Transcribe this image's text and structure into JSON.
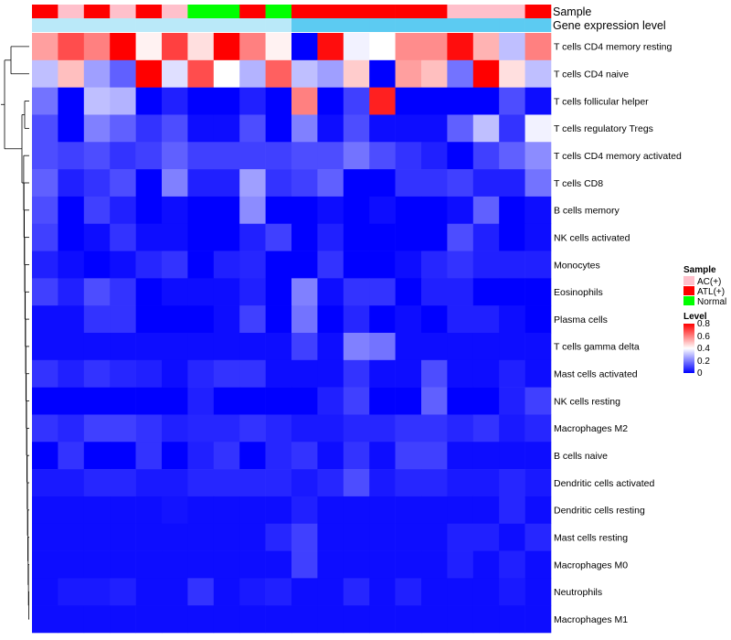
{
  "chart_data": {
    "type": "heatmap",
    "annotation_tracks": [
      {
        "name": "Sample",
        "values": [
          "ATL(+)",
          "AC(+)",
          "ATL(+)",
          "AC(+)",
          "ATL(+)",
          "AC(+)",
          "Normal",
          "Normal",
          "ATL(+)",
          "Normal",
          "ATL(+)",
          "ATL(+)",
          "ATL(+)",
          "ATL(+)",
          "ATL(+)",
          "ATL(+)",
          "AC(+)",
          "AC(+)",
          "AC(+)",
          "ATL(+)"
        ]
      },
      {
        "name": "Gene expression level",
        "values": [
          0.1,
          0.1,
          0.1,
          0.1,
          0.1,
          0.1,
          0.1,
          0.1,
          0.1,
          0.1,
          0.5,
          0.5,
          0.5,
          0.5,
          0.5,
          0.5,
          0.5,
          0.5,
          0.5,
          0.5
        ]
      }
    ],
    "rows": [
      "T cells CD4 memory resting",
      "T cells CD4 naive",
      "T cells follicular helper",
      "T cells regulatory  Tregs",
      "T cells CD4 memory activated",
      "T cells CD8",
      "B cells memory",
      "NK cells activated",
      "Monocytes",
      "Eosinophils",
      "Plasma cells",
      "T cells gamma delta",
      "Mast cells activated",
      "NK cells resting",
      "Macrophages M2",
      "B cells naive",
      "Dendritic cells activated",
      "Dendritic cells resting",
      "Mast cells resting",
      "Macrophages M0",
      "Neutrophils",
      "Macrophages M1"
    ],
    "values": [
      [
        0.55,
        0.68,
        0.6,
        0.8,
        0.42,
        0.7,
        0.45,
        0.8,
        0.6,
        0.42,
        0.0,
        0.78,
        0.38,
        0.4,
        0.58,
        0.58,
        0.78,
        0.52,
        0.3,
        0.6
      ],
      [
        0.3,
        0.5,
        0.25,
        0.15,
        0.8,
        0.35,
        0.68,
        0.4,
        0.28,
        0.65,
        0.3,
        0.25,
        0.48,
        0.0,
        0.55,
        0.5,
        0.18,
        0.8,
        0.45,
        0.3
      ],
      [
        0.18,
        0.0,
        0.3,
        0.28,
        0.0,
        0.05,
        0.0,
        0.0,
        0.05,
        0.0,
        0.6,
        0.0,
        0.1,
        0.75,
        0.0,
        0.0,
        0.0,
        0.0,
        0.12,
        0.02
      ],
      [
        0.12,
        0.0,
        0.2,
        0.15,
        0.08,
        0.12,
        0.02,
        0.02,
        0.12,
        0.0,
        0.2,
        0.02,
        0.12,
        0.02,
        0.02,
        0.02,
        0.15,
        0.3,
        0.08,
        0.38
      ],
      [
        0.12,
        0.1,
        0.12,
        0.08,
        0.1,
        0.15,
        0.1,
        0.1,
        0.1,
        0.1,
        0.12,
        0.12,
        0.18,
        0.12,
        0.08,
        0.05,
        0.0,
        0.1,
        0.15,
        0.22
      ],
      [
        0.15,
        0.05,
        0.08,
        0.12,
        0.0,
        0.2,
        0.05,
        0.05,
        0.25,
        0.08,
        0.1,
        0.15,
        0.0,
        0.0,
        0.08,
        0.08,
        0.1,
        0.05,
        0.05,
        0.18
      ],
      [
        0.12,
        0.0,
        0.1,
        0.05,
        0.0,
        0.02,
        0.0,
        0.0,
        0.22,
        0.0,
        0.0,
        0.02,
        0.0,
        0.02,
        0.0,
        0.0,
        0.02,
        0.15,
        0.0,
        0.02
      ],
      [
        0.1,
        0.0,
        0.02,
        0.08,
        0.02,
        0.02,
        0.0,
        0.0,
        0.05,
        0.1,
        0.0,
        0.05,
        0.0,
        0.0,
        0.0,
        0.0,
        0.12,
        0.05,
        0.0,
        0.02
      ],
      [
        0.05,
        0.02,
        0.0,
        0.02,
        0.06,
        0.08,
        0.0,
        0.05,
        0.06,
        0.0,
        0.0,
        0.08,
        0.0,
        0.0,
        0.02,
        0.06,
        0.08,
        0.05,
        0.05,
        0.05
      ],
      [
        0.1,
        0.05,
        0.12,
        0.08,
        0.0,
        0.02,
        0.02,
        0.02,
        0.05,
        0.0,
        0.2,
        0.02,
        0.08,
        0.08,
        0.0,
        0.05,
        0.05,
        0.0,
        0.0,
        0.0
      ],
      [
        0.02,
        0.02,
        0.08,
        0.08,
        0.0,
        0.0,
        0.0,
        0.02,
        0.1,
        0.0,
        0.18,
        0.0,
        0.06,
        0.0,
        0.02,
        0.0,
        0.05,
        0.05,
        0.02,
        0.0
      ],
      [
        0.02,
        0.02,
        0.02,
        0.02,
        0.02,
        0.02,
        0.02,
        0.02,
        0.02,
        0.02,
        0.1,
        0.02,
        0.2,
        0.18,
        0.02,
        0.02,
        0.02,
        0.02,
        0.02,
        0.02
      ],
      [
        0.08,
        0.05,
        0.08,
        0.06,
        0.05,
        0.02,
        0.06,
        0.08,
        0.08,
        0.02,
        0.02,
        0.02,
        0.08,
        0.02,
        0.02,
        0.12,
        0.02,
        0.02,
        0.05,
        0.02
      ],
      [
        0.0,
        0.0,
        0.0,
        0.0,
        0.0,
        0.0,
        0.05,
        0.0,
        0.0,
        0.0,
        0.0,
        0.05,
        0.1,
        0.0,
        0.0,
        0.15,
        0.0,
        0.0,
        0.05,
        0.1
      ],
      [
        0.08,
        0.06,
        0.1,
        0.1,
        0.08,
        0.05,
        0.06,
        0.06,
        0.08,
        0.06,
        0.04,
        0.04,
        0.06,
        0.06,
        0.08,
        0.08,
        0.06,
        0.08,
        0.04,
        0.06
      ],
      [
        0.0,
        0.08,
        0.0,
        0.0,
        0.08,
        0.0,
        0.05,
        0.08,
        0.0,
        0.06,
        0.08,
        0.02,
        0.08,
        0.02,
        0.1,
        0.1,
        0.02,
        0.02,
        0.02,
        0.02
      ],
      [
        0.04,
        0.04,
        0.06,
        0.06,
        0.04,
        0.04,
        0.06,
        0.06,
        0.06,
        0.06,
        0.04,
        0.06,
        0.12,
        0.04,
        0.06,
        0.06,
        0.04,
        0.04,
        0.06,
        0.04
      ],
      [
        0.02,
        0.02,
        0.02,
        0.02,
        0.02,
        0.03,
        0.02,
        0.02,
        0.02,
        0.02,
        0.05,
        0.02,
        0.02,
        0.02,
        0.02,
        0.02,
        0.02,
        0.02,
        0.06,
        0.02
      ],
      [
        0.02,
        0.02,
        0.02,
        0.02,
        0.02,
        0.02,
        0.02,
        0.02,
        0.02,
        0.06,
        0.1,
        0.02,
        0.02,
        0.02,
        0.02,
        0.02,
        0.05,
        0.05,
        0.02,
        0.06
      ],
      [
        0.02,
        0.02,
        0.02,
        0.02,
        0.02,
        0.02,
        0.02,
        0.02,
        0.02,
        0.02,
        0.1,
        0.02,
        0.02,
        0.02,
        0.02,
        0.02,
        0.05,
        0.02,
        0.05,
        0.02
      ],
      [
        0.02,
        0.04,
        0.04,
        0.05,
        0.02,
        0.02,
        0.08,
        0.02,
        0.04,
        0.05,
        0.02,
        0.02,
        0.06,
        0.02,
        0.05,
        0.02,
        0.02,
        0.02,
        0.04,
        0.02
      ],
      [
        0.02,
        0.02,
        0.02,
        0.02,
        0.02,
        0.02,
        0.02,
        0.02,
        0.02,
        0.02,
        0.02,
        0.02,
        0.02,
        0.02,
        0.02,
        0.02,
        0.02,
        0.02,
        0.02,
        0.02
      ]
    ],
    "legend": {
      "sample_title": "Sample",
      "sample_entries": [
        {
          "label": "AC(+)",
          "color": "#ffc0cb"
        },
        {
          "label": "ATL(+)",
          "color": "#ff0000"
        },
        {
          "label": "Normal",
          "color": "#00ff00"
        }
      ],
      "level_title": "Level",
      "level_ticks": [
        "0.8",
        "0.6",
        "0.4",
        "0.2",
        "0"
      ],
      "level_range": [
        0,
        0.8
      ]
    },
    "colors": {
      "low": "#0000ff",
      "mid": "#ffffff",
      "high": "#ff0000",
      "expr_low": "#d2f0fb",
      "expr_high": "#5ccbf2"
    }
  }
}
